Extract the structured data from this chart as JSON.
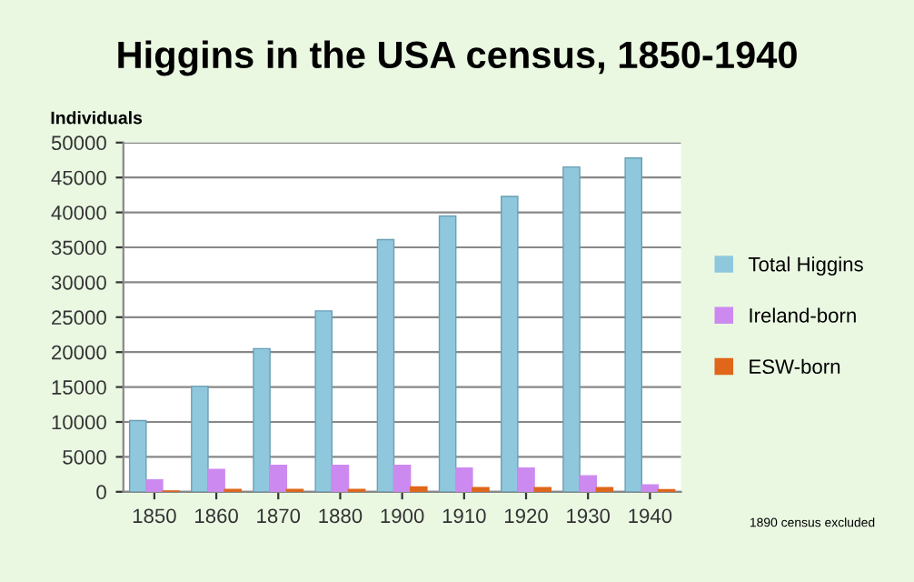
{
  "chart_data": {
    "type": "bar",
    "title": "Higgins in the USA census, 1850-1940",
    "ylabel": "Individuals",
    "categories": [
      "1850",
      "1860",
      "1870",
      "1880",
      "1900",
      "1910",
      "1920",
      "1930",
      "1940"
    ],
    "series": [
      {
        "name": "Total Higgins",
        "color": "#8fc8dc",
        "values": [
          10200,
          15100,
          20500,
          25900,
          36100,
          39500,
          42300,
          46500,
          47800
        ]
      },
      {
        "name": "Ireland-born",
        "color": "#cc8af0",
        "values": [
          1700,
          3200,
          3800,
          3800,
          3800,
          3400,
          3400,
          2300,
          1000
        ]
      },
      {
        "name": "ESW-born",
        "color": "#e0661a",
        "values": [
          100,
          350,
          350,
          350,
          700,
          600,
          600,
          600,
          300
        ]
      }
    ],
    "ylim": [
      0,
      50000
    ],
    "yticks": [
      0,
      5000,
      10000,
      15000,
      20000,
      25000,
      30000,
      35000,
      40000,
      45000,
      50000
    ],
    "grid": "y",
    "legend": "right",
    "annotations": [
      "1890 census excluded"
    ]
  }
}
